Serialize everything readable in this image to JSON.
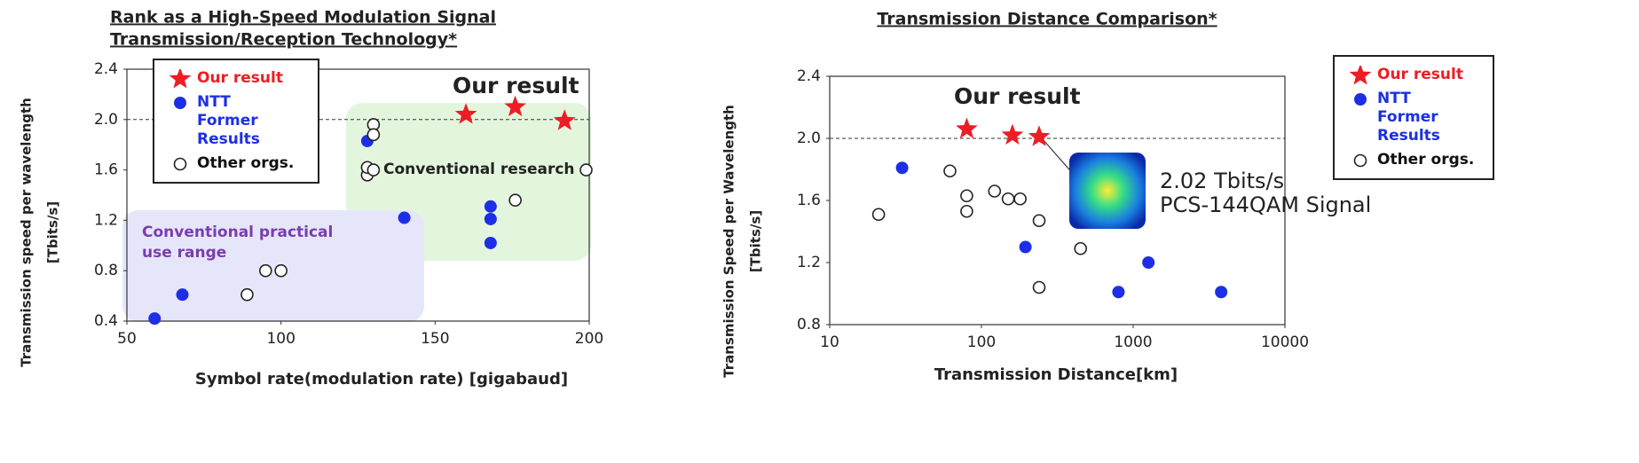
{
  "chart_data": [
    {
      "type": "scatter",
      "title": [
        "Rank as a High-Speed Modulation Signal",
        "Transmission/Reception Technology*"
      ],
      "xlabel": "Symbol rate(modulation rate) [gigabaud]",
      "ylabel": [
        "Transmission speed per wavelength",
        "[Tbits/s]"
      ],
      "xscale": "linear",
      "xlim": [
        50,
        200
      ],
      "xticks": [
        50,
        100,
        150,
        200
      ],
      "ylim": [
        0.4,
        2.4
      ],
      "yticks": [
        0.4,
        0.8,
        1.2,
        1.6,
        {
          "value": 2.0,
          "label": "2.0"
        },
        2.4
      ],
      "reference_line": 2.0,
      "legend": "upper left",
      "annotations": [
        "Our result",
        "Conventional research",
        "Conventional practical use range"
      ],
      "series": [
        {
          "name": "Our result",
          "color": "#ee1c25",
          "marker": "star",
          "x": [
            160,
            176,
            192
          ],
          "values": [
            2.04,
            2.1,
            1.99
          ]
        },
        {
          "name": "NTT Former Results",
          "color": "#1d2fe6",
          "marker": "filled-circle",
          "x": [
            59,
            68,
            140,
            128,
            168,
            168,
            168
          ],
          "values": [
            0.42,
            0.61,
            1.22,
            1.83,
            1.31,
            1.21,
            1.02
          ]
        },
        {
          "name": "Other orgs.",
          "color": "#222222",
          "marker": "open-circle",
          "x": [
            89,
            95,
            100,
            128,
            128,
            130,
            130,
            130,
            176,
            199
          ],
          "values": [
            0.61,
            0.8,
            0.8,
            1.56,
            1.62,
            1.6,
            1.96,
            1.88,
            1.36,
            1.6
          ]
        }
      ]
    },
    {
      "type": "scatter",
      "title": [
        "Transmission Distance Comparison*"
      ],
      "xlabel": "Transmission Distance[km]",
      "ylabel": [
        "Transmission Speed per Wavelength",
        "[Tbits/s]"
      ],
      "xscale": "log",
      "xlim": [
        10,
        10000
      ],
      "xticks": [
        10,
        100,
        1000,
        10000
      ],
      "ylim": [
        0.8,
        2.4
      ],
      "yticks": [
        0.8,
        1.2,
        1.6,
        {
          "value": 2.0,
          "label": "2.0"
        },
        2.4
      ],
      "reference_line": 2.0,
      "legend": "upper right",
      "annotations": [
        "Our result",
        "2.02 Tbits/s",
        "PCS-144QAM Signal"
      ],
      "series": [
        {
          "name": "Our result",
          "color": "#ee1c25",
          "marker": "star",
          "x": [
            80,
            160,
            240
          ],
          "values": [
            2.06,
            2.02,
            2.01
          ]
        },
        {
          "name": "NTT Former Results",
          "color": "#1d2fe6",
          "marker": "filled-circle",
          "x": [
            30,
            195,
            800,
            1260,
            3800
          ],
          "values": [
            1.81,
            1.3,
            1.01,
            1.2,
            1.01
          ]
        },
        {
          "name": "Other orgs.",
          "color": "#222222",
          "marker": "open-circle",
          "x": [
            21,
            62,
            80,
            80,
            122,
            150,
            180,
            240,
            240,
            450
          ],
          "values": [
            1.51,
            1.79,
            1.63,
            1.53,
            1.66,
            1.61,
            1.61,
            1.47,
            1.04,
            1.29
          ]
        }
      ]
    }
  ]
}
